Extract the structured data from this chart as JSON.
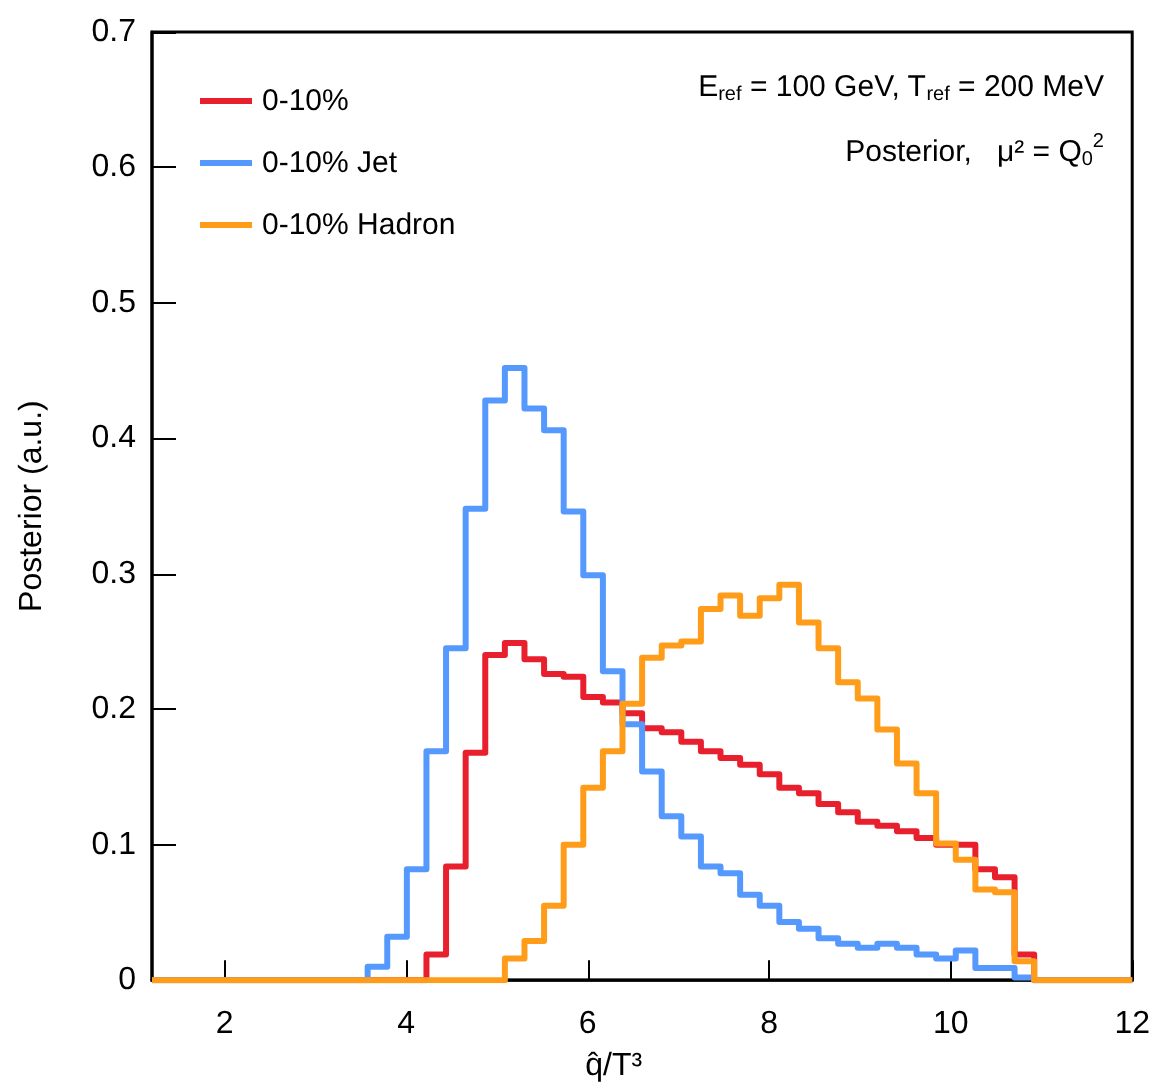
{
  "chart_data": {
    "type": "histogram",
    "xlabel": "q̂/T³",
    "ylabel": "Posterior (a.u.)",
    "annotations": [
      "E$_{ref}$ = 100 GeV, T$_{ref}$ = 200 MeV",
      "Posterior,   μ² = Q$_{0}$$^{2}$"
    ],
    "bins": [
      1.2,
      1.416,
      1.632,
      1.848,
      2.064,
      2.28,
      2.496,
      2.712,
      2.928,
      3.144,
      3.36,
      3.576,
      3.792,
      4.008,
      4.224,
      4.44,
      4.656,
      4.872,
      5.088,
      5.304,
      5.52,
      5.736,
      5.952,
      6.168,
      6.384,
      6.6,
      6.816,
      7.032,
      7.248,
      7.464,
      7.68,
      7.896,
      8.112,
      8.328,
      8.544,
      8.76,
      8.976,
      9.192,
      9.408,
      9.624,
      9.84,
      10.056,
      10.272,
      10.488,
      10.704,
      10.92,
      11.136,
      11.352,
      11.568,
      11.784,
      12
    ],
    "series": [
      {
        "name": "0-10%",
        "color": "#e8202e",
        "values": [
          0,
          0,
          0,
          0,
          0,
          0,
          0,
          0,
          0,
          0,
          0,
          0,
          0,
          0,
          0.019,
          0.084,
          0.168,
          0.24,
          0.249,
          0.237,
          0.226,
          0.224,
          0.209,
          0.205,
          0.197,
          0.186,
          0.183,
          0.176,
          0.169,
          0.164,
          0.159,
          0.152,
          0.142,
          0.138,
          0.13,
          0.124,
          0.117,
          0.114,
          0.11,
          0.105,
          0.1,
          0.1,
          0.082,
          0.076,
          0.019,
          0,
          0,
          0,
          0,
          0
        ]
      },
      {
        "name": "0-10% Jet",
        "color": "#5599ff",
        "values": [
          0,
          0,
          0,
          0,
          0,
          0,
          0,
          0,
          0,
          0,
          0,
          0.01,
          0.032,
          0.082,
          0.169,
          0.245,
          0.348,
          0.428,
          0.452,
          0.422,
          0.406,
          0.346,
          0.299,
          0.228,
          0.189,
          0.154,
          0.121,
          0.106,
          0.084,
          0.079,
          0.063,
          0.055,
          0.043,
          0.038,
          0.031,
          0.027,
          0.024,
          0.027,
          0.024,
          0.019,
          0.016,
          0.022,
          0.009,
          0.009,
          0.002,
          0,
          0,
          0,
          0,
          0
        ]
      },
      {
        "name": "0-10% Hadron",
        "color": "#ff9d1a",
        "values": [
          0,
          0,
          0,
          0,
          0,
          0,
          0,
          0,
          0,
          0,
          0,
          0,
          0,
          0,
          0,
          0,
          0,
          0,
          0.016,
          0.029,
          0.055,
          0.1,
          0.142,
          0.169,
          0.204,
          0.238,
          0.247,
          0.25,
          0.274,
          0.284,
          0.269,
          0.282,
          0.292,
          0.264,
          0.245,
          0.22,
          0.208,
          0.185,
          0.16,
          0.138,
          0.101,
          0.089,
          0.067,
          0.065,
          0.014,
          0,
          0,
          0,
          0,
          0
        ]
      }
    ],
    "xlim": [
      1.2,
      12
    ],
    "xticks": [
      2,
      4,
      6,
      8,
      10,
      12
    ],
    "ylim": [
      0,
      0.7
    ],
    "yticks": [
      0,
      0.1,
      0.2,
      0.3,
      0.4,
      0.5,
      0.6,
      0.7
    ],
    "legend": "top left",
    "grid": false
  }
}
